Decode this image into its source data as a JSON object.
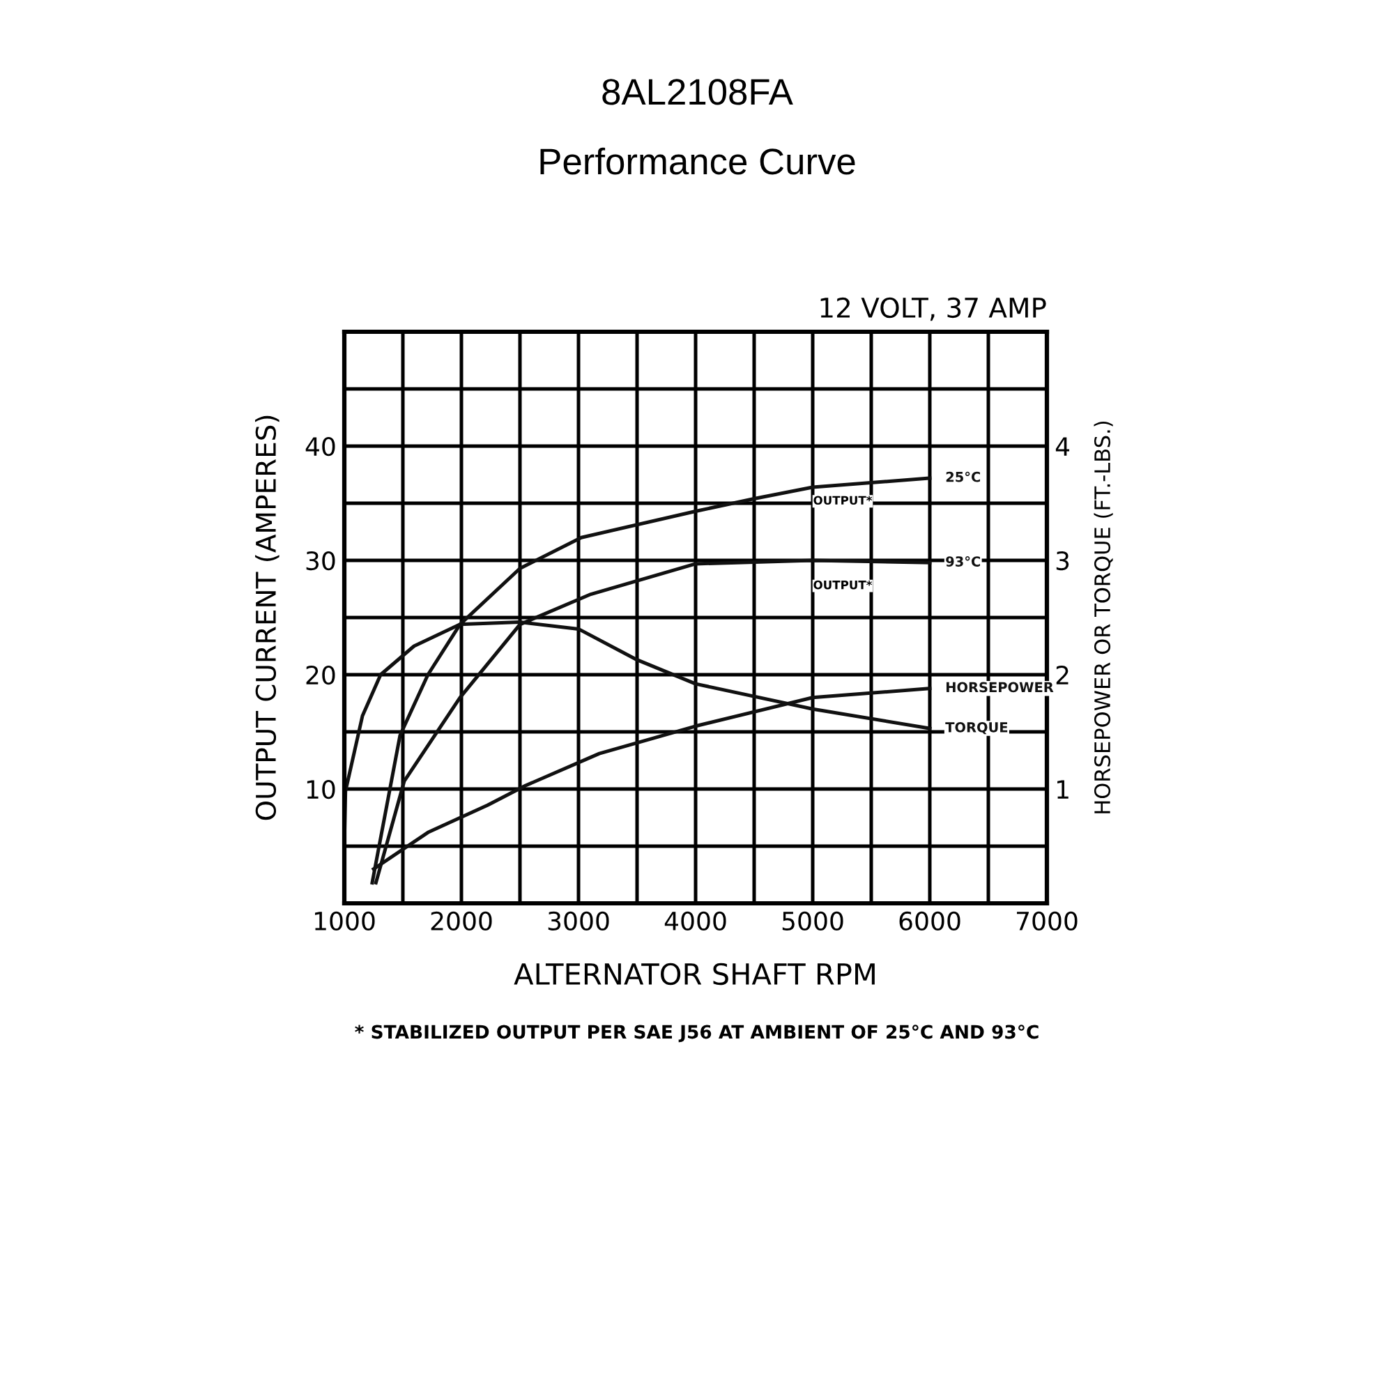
{
  "chart_data": {
    "type": "line",
    "title": "8AL2108FA",
    "subtitle": "Performance Curve",
    "xlabel": "ALTERNATOR SHAFT RPM",
    "ylabel": "OUTPUT CURRENT (AMPERES)",
    "y2label": "HORSEPOWER OR TORQUE (FT.-LBS.)",
    "annotations": [
      "12 VOLT, 37 AMP",
      "* STABILIZED OUTPUT PER SAE J56 AT AMBIENT OF 25°C AND 93°C",
      "OUTPUT*",
      "OUTPUT*"
    ],
    "series": [
      {
        "name": "25°C",
        "color": "#111111",
        "x": [
          1238,
          1476,
          1714,
          1988,
          2500,
          3024,
          4000,
          4500,
          5000,
          6000
        ],
        "values": [
          1.8,
          14.7,
          20,
          24.4,
          29.3,
          32,
          34.3,
          35.4,
          36.4,
          37.2
        ]
      },
      {
        "name": "93°C",
        "color": "#111111",
        "x": [
          1270,
          1512,
          1988,
          2500,
          3095,
          4000,
          5000,
          6000
        ],
        "values": [
          1.8,
          10.7,
          18,
          24.4,
          27,
          29.7,
          30,
          29.8
        ]
      },
      {
        "name": "HORSEPOWER",
        "color": "#111111",
        "axis": "y2",
        "x": [
          1250,
          1714,
          2226,
          2548,
          3178,
          4000,
          5000,
          6000
        ],
        "values": [
          0.3,
          0.62,
          0.86,
          1.03,
          1.31,
          1.55,
          1.8,
          1.88
        ]
      },
      {
        "name": "TORQUE",
        "color": "#111111",
        "axis": "y2",
        "x": [
          1000,
          1010,
          1155,
          1310,
          1595,
          1988,
          2500,
          3000,
          3500,
          4000,
          5000,
          6000
        ],
        "values": [
          0.5,
          0.98,
          1.64,
          2.0,
          2.25,
          2.44,
          2.46,
          2.4,
          2.13,
          1.92,
          1.7,
          1.53
        ]
      }
    ],
    "xlim": [
      1000,
      7000
    ],
    "xticks": [
      {
        "value": 1000,
        "label": "1000"
      },
      {
        "value": 1500,
        "label": null
      },
      2000,
      {
        "value": 2500,
        "label": null
      },
      3000,
      {
        "value": 3500,
        "label": null
      },
      4000,
      {
        "value": 4500,
        "label": null
      },
      5000,
      {
        "value": 5500,
        "label": null
      },
      6000,
      {
        "value": 6500,
        "label": null
      },
      7000
    ],
    "ylim": [
      0,
      50
    ],
    "yticks": [
      {
        "value": 5,
        "label": null
      },
      10,
      {
        "value": 15,
        "label": null
      },
      20,
      {
        "value": 25,
        "label": null
      },
      30,
      {
        "value": 35,
        "label": null
      },
      40,
      {
        "value": 45,
        "label": null
      }
    ],
    "y2lim": [
      0,
      5
    ],
    "y2ticks": [
      1,
      2,
      3,
      4
    ],
    "grid": true,
    "legend": false,
    "marker": "none",
    "line_style": "solid"
  }
}
